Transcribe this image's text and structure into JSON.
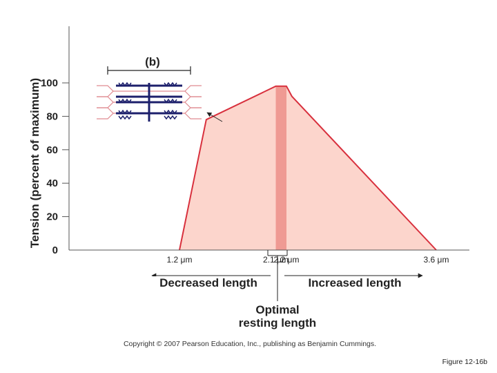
{
  "chart_data": {
    "type": "area",
    "title": "",
    "panel_label": "(b)",
    "ylabel": "Tension (percent of maximum)",
    "xlabel": "",
    "ylim": [
      0,
      100
    ],
    "y_ticks": [
      "0",
      "20",
      "40",
      "60",
      "80",
      "100"
    ],
    "x_labels": [
      "1.2 μm",
      "2.1 μm",
      "2.2 μm",
      "3.6 μm"
    ],
    "x_positions_um": [
      1.2,
      2.1,
      2.2,
      3.6
    ],
    "curve": {
      "x_um": [
        1.2,
        1.45,
        2.1,
        2.2,
        2.25,
        3.6
      ],
      "tension_pct": [
        0,
        78,
        98,
        98,
        92,
        0
      ]
    },
    "optimal_band_um": [
      2.1,
      2.2
    ],
    "annotations": {
      "decreased": "Decreased length",
      "increased": "Increased length",
      "optimal_line1": "Optimal",
      "optimal_line2": "resting length"
    },
    "colors": {
      "fill": "#fcd5cc",
      "band": "#ef9a93",
      "curve": "#d8303d",
      "sarcomere": "#1c1f6b"
    }
  },
  "copyright": "Copyright © 2007 Pearson Education, Inc., publishing as Benjamin Cummings.",
  "figure_id": "Figure 12-16b"
}
